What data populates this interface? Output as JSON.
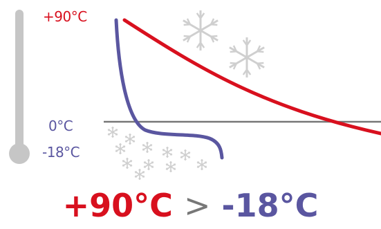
{
  "labels": {
    "top_temp": "+90°C",
    "zero_temp": "0°C",
    "low_temp": "-18°C"
  },
  "headline": {
    "hot": "+90°C",
    "operator": ">",
    "cold": "-18°C"
  },
  "colors": {
    "hot": "#d8101e",
    "cold": "#5a56a0",
    "gray": "#c6c6c6",
    "axis": "#777777",
    "snow": "#cfcfcf"
  }
}
